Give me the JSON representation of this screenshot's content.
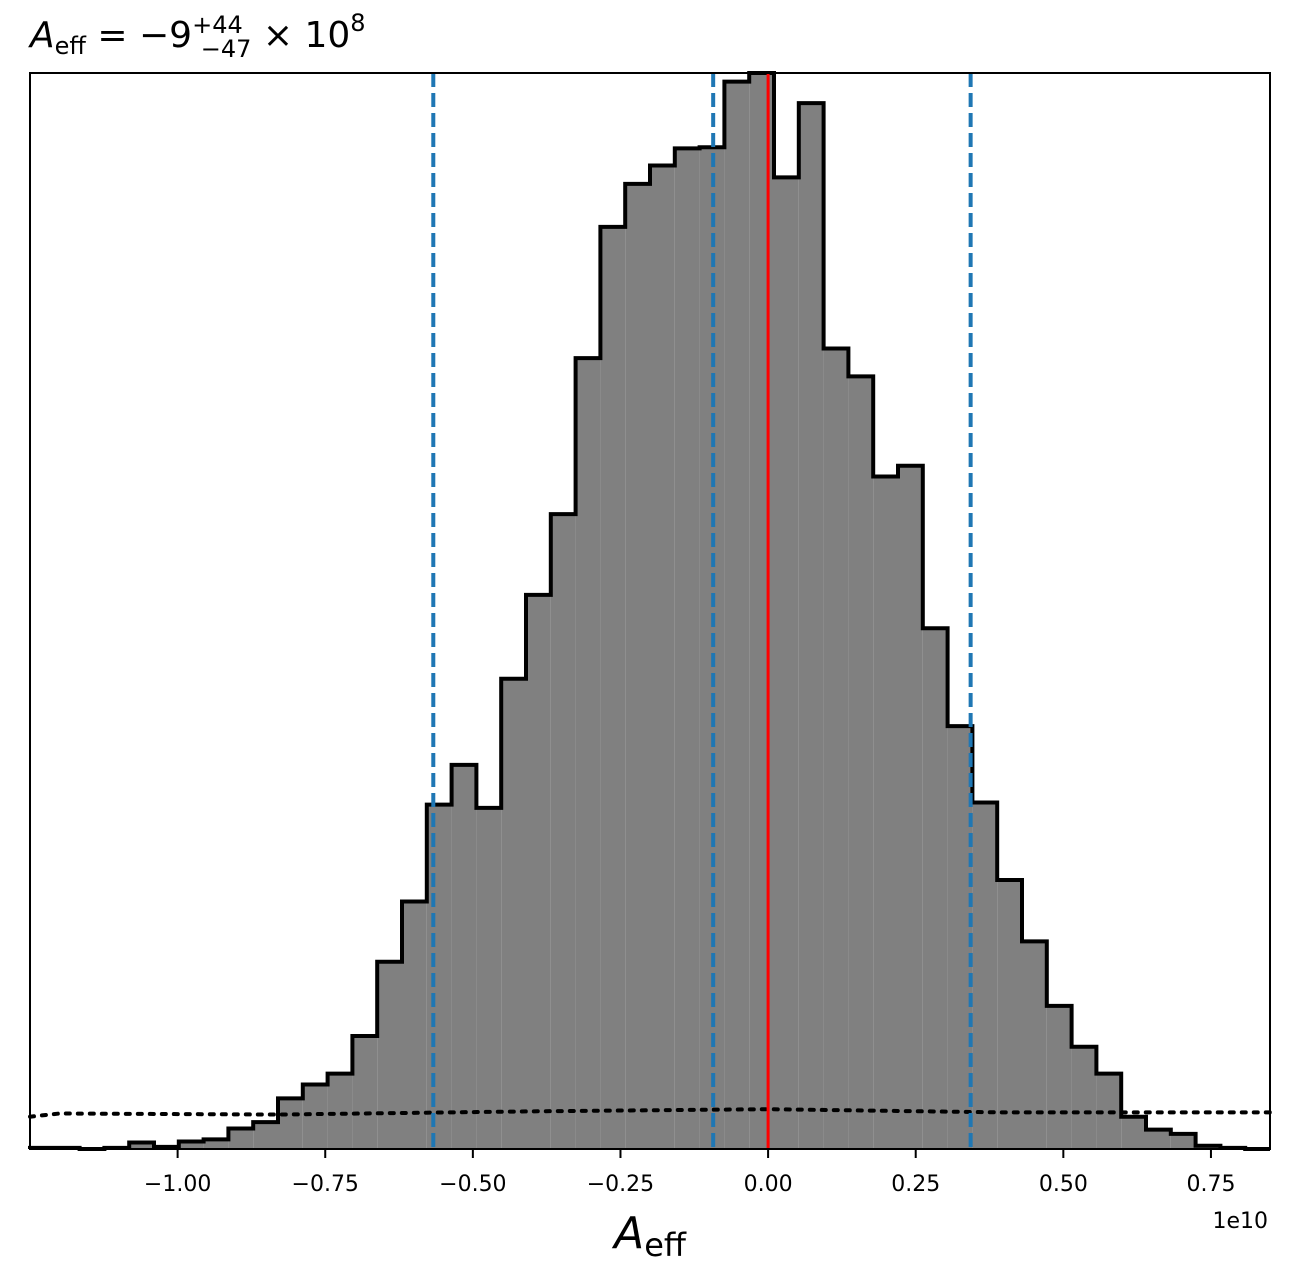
{
  "chart_data": {
    "type": "bar",
    "title": {
      "base": "A",
      "sub": "eff",
      "eq": " = −9",
      "sup": "+44",
      "low": "−47",
      "tail": " × 10",
      "exp": "8"
    },
    "xlabel": {
      "base": "A",
      "sub": "eff"
    },
    "xlim": [
      -12500000000.0,
      8500000000.0
    ],
    "ylim": [
      0,
      1.0
    ],
    "x_offset_label": "1e10",
    "x_ticks": [
      -10000000000.0,
      -7500000000.0,
      -5000000000.0,
      -2500000000.0,
      0,
      2500000000.0,
      5000000000.0,
      7500000000.0
    ],
    "x_tick_labels": [
      "−1.00",
      "−0.75",
      "−0.50",
      "−0.25",
      "0.00",
      "0.25",
      "0.50",
      "0.75"
    ],
    "y_ticks_shown": false,
    "histogram": {
      "fill_color": "#808080",
      "edge_color": "#000000",
      "bin_edges": [
        -12500000000.0,
        -12080000000.0,
        -11660000000.0,
        -11240000000.0,
        -10820000000.0,
        -10400000000.0,
        -9980000000.0,
        -9560000000.0,
        -9140000000.0,
        -8720000000.0,
        -8300000000.0,
        -7880000000.0,
        -7460000000.0,
        -7040000000.0,
        -6620000000.0,
        -6200000000.0,
        -5780000000.0,
        -5360000000.0,
        -4940000000.0,
        -4520000000.0,
        -4100000000.0,
        -3680000000.0,
        -3260000000.0,
        -2840000000.0,
        -2420000000.0,
        -2000000000.0,
        -1580000000.0,
        -1160000000.0,
        -740000000.0,
        -320000000.0,
        100000000.0,
        520000000.0,
        940000000.0,
        1360000000.0,
        1780000000.0,
        2200000000.0,
        2620000000.0,
        3040000000.0,
        3460000000.0,
        3880000000.0,
        4300000000.0,
        4720000000.0,
        5140000000.0,
        5560000000.0,
        5980000000.0,
        6400000000.0,
        6820000000.0,
        7240000000.0,
        7660000000.0,
        8080000000.0,
        8500000000.0
      ],
      "counts": [
        0.001,
        0.001,
        0.0,
        0.001,
        0.006,
        0.002,
        0.007,
        0.009,
        0.019,
        0.025,
        0.047,
        0.06,
        0.07,
        0.105,
        0.174,
        0.23,
        0.32,
        0.357,
        0.317,
        0.437,
        0.515,
        0.59,
        0.735,
        0.857,
        0.897,
        0.914,
        0.93,
        0.931,
        0.992,
        1.0,
        0.903,
        0.972,
        0.744,
        0.718,
        0.625,
        0.635,
        0.484,
        0.393,
        0.322,
        0.25,
        0.193,
        0.133,
        0.095,
        0.07,
        0.03,
        0.018,
        0.014,
        0.003,
        0.001,
        0.0
      ]
    },
    "vertical_lines": [
      {
        "name": "lower-quantile",
        "x": -5670000000.0,
        "color": "#1f77b4",
        "style": "dashed"
      },
      {
        "name": "median",
        "x": -930000000.0,
        "color": "#1f77b4",
        "style": "dashed"
      },
      {
        "name": "upper-quantile",
        "x": 3430000000.0,
        "color": "#1f77b4",
        "style": "dashed"
      },
      {
        "name": "true-value",
        "x": 0.0,
        "color": "#ff0000",
        "style": "solid"
      }
    ],
    "prior_line": {
      "color": "#000000",
      "style": "dotted",
      "x": [
        -12500000000.0,
        -12000000000.0,
        -8300000000.0,
        -4000000000.0,
        0.0,
        4000000000.0,
        8500000000.0
      ],
      "y": [
        0.03,
        0.033,
        0.032,
        0.035,
        0.037,
        0.034,
        0.034
      ]
    }
  }
}
